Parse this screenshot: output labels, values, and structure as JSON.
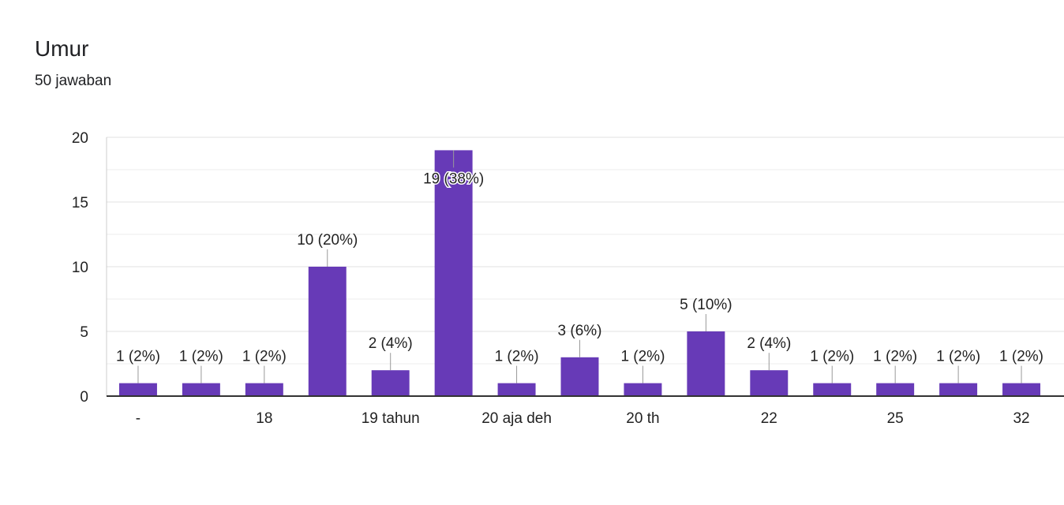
{
  "header": {
    "title": "Umur",
    "response_count": "50 jawaban"
  },
  "colors": {
    "bar": "#673ab7",
    "grid": "#e6e6e6",
    "axis": "#333333",
    "text": "#222222",
    "leader": "#999999"
  },
  "chart_data": {
    "type": "bar",
    "title": "",
    "xlabel": "",
    "ylabel": "",
    "ylim": [
      0,
      20
    ],
    "yticks": [
      0,
      5,
      10,
      15,
      20
    ],
    "grid": true,
    "categories": [
      "-",
      "",
      "18",
      "",
      "19 tahun",
      "",
      "20 aja deh",
      "",
      "20 th",
      "",
      "22",
      "",
      "25",
      "",
      "32"
    ],
    "values": [
      1,
      1,
      1,
      10,
      2,
      19,
      1,
      3,
      1,
      5,
      2,
      1,
      1,
      1,
      1
    ],
    "data_labels": [
      "1 (2%)",
      "1 (2%)",
      "1 (2%)",
      "10 (20%)",
      "2 (4%)",
      "19 (38%)",
      "1 (2%)",
      "3 (6%)",
      "1 (2%)",
      "5 (10%)",
      "2 (4%)",
      "1 (2%)",
      "1 (2%)",
      "1 (2%)",
      "1 (2%)"
    ]
  }
}
